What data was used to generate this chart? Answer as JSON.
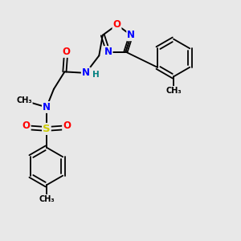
{
  "background_color": "#e8e8e8",
  "bond_color": "#000000",
  "atom_colors": {
    "O": "#ff0000",
    "N": "#0000ff",
    "S": "#cccc00",
    "H": "#008080",
    "C": "#000000"
  },
  "figsize": [
    3.0,
    3.0
  ],
  "dpi": 100,
  "xlim": [
    0,
    10
  ],
  "ylim": [
    0,
    10
  ]
}
